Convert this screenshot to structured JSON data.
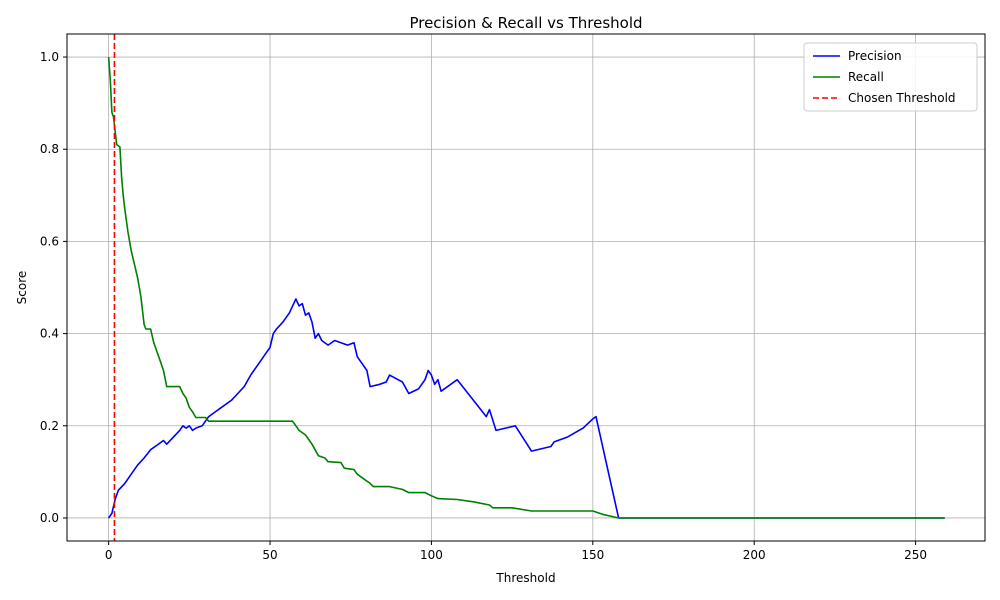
{
  "chart_data": {
    "type": "line",
    "title": "Precision & Recall vs Threshold",
    "xlabel": "Threshold",
    "ylabel": "Score",
    "xlim": [
      -12.9,
      271.5
    ],
    "ylim": [
      -0.05,
      1.05
    ],
    "xticks": [
      0,
      50,
      100,
      150,
      200,
      250
    ],
    "yticks": [
      0.0,
      0.2,
      0.4,
      0.6,
      0.8,
      1.0
    ],
    "grid": true,
    "legend_position": "top-right",
    "series": [
      {
        "name": "Precision",
        "color": "#0000ff",
        "style": "solid",
        "points": [
          [
            0,
            0.0
          ],
          [
            1,
            0.01
          ],
          [
            2,
            0.04
          ],
          [
            3,
            0.06
          ],
          [
            5,
            0.075
          ],
          [
            7,
            0.095
          ],
          [
            9,
            0.115
          ],
          [
            11,
            0.13
          ],
          [
            13,
            0.148
          ],
          [
            15,
            0.158
          ],
          [
            17,
            0.168
          ],
          [
            18,
            0.16
          ],
          [
            20,
            0.175
          ],
          [
            22,
            0.19
          ],
          [
            23,
            0.2
          ],
          [
            24,
            0.195
          ],
          [
            25,
            0.2
          ],
          [
            26,
            0.19
          ],
          [
            27,
            0.195
          ],
          [
            29,
            0.2
          ],
          [
            31,
            0.22
          ],
          [
            33,
            0.23
          ],
          [
            35,
            0.24
          ],
          [
            38,
            0.255
          ],
          [
            40,
            0.27
          ],
          [
            42,
            0.285
          ],
          [
            44,
            0.31
          ],
          [
            46,
            0.33
          ],
          [
            48,
            0.35
          ],
          [
            50,
            0.37
          ],
          [
            51,
            0.4
          ],
          [
            52,
            0.41
          ],
          [
            54,
            0.425
          ],
          [
            56,
            0.445
          ],
          [
            57,
            0.46
          ],
          [
            58,
            0.475
          ],
          [
            59,
            0.46
          ],
          [
            60,
            0.465
          ],
          [
            61,
            0.44
          ],
          [
            62,
            0.445
          ],
          [
            63,
            0.425
          ],
          [
            64,
            0.39
          ],
          [
            65,
            0.4
          ],
          [
            66,
            0.385
          ],
          [
            68,
            0.375
          ],
          [
            70,
            0.385
          ],
          [
            72,
            0.38
          ],
          [
            74,
            0.375
          ],
          [
            76,
            0.38
          ],
          [
            77,
            0.35
          ],
          [
            78,
            0.34
          ],
          [
            80,
            0.32
          ],
          [
            81,
            0.285
          ],
          [
            84,
            0.29
          ],
          [
            86,
            0.295
          ],
          [
            87,
            0.31
          ],
          [
            91,
            0.295
          ],
          [
            93,
            0.27
          ],
          [
            96,
            0.28
          ],
          [
            98,
            0.3
          ],
          [
            99,
            0.32
          ],
          [
            100,
            0.31
          ],
          [
            101,
            0.29
          ],
          [
            102,
            0.3
          ],
          [
            103,
            0.275
          ],
          [
            108,
            0.3
          ],
          [
            117,
            0.22
          ],
          [
            118,
            0.235
          ],
          [
            120,
            0.19
          ],
          [
            126,
            0.2
          ],
          [
            131,
            0.145
          ],
          [
            137,
            0.155
          ],
          [
            138,
            0.165
          ],
          [
            142,
            0.175
          ],
          [
            147,
            0.195
          ],
          [
            150,
            0.215
          ],
          [
            151,
            0.22
          ],
          [
            154,
            0.125
          ],
          [
            158,
            0.0
          ],
          [
            259,
            0.0
          ]
        ]
      },
      {
        "name": "Recall",
        "color": "#008000",
        "style": "solid",
        "points": [
          [
            0,
            1.0
          ],
          [
            0.5,
            0.95
          ],
          [
            1,
            0.88
          ],
          [
            1.5,
            0.87
          ],
          [
            2,
            0.84
          ],
          [
            2.5,
            0.81
          ],
          [
            3.5,
            0.805
          ],
          [
            4,
            0.74
          ],
          [
            4.5,
            0.7
          ],
          [
            5,
            0.67
          ],
          [
            6,
            0.62
          ],
          [
            7,
            0.58
          ],
          [
            8,
            0.55
          ],
          [
            9,
            0.52
          ],
          [
            10,
            0.48
          ],
          [
            11,
            0.42
          ],
          [
            11.5,
            0.41
          ],
          [
            13,
            0.41
          ],
          [
            14,
            0.38
          ],
          [
            15,
            0.36
          ],
          [
            16,
            0.34
          ],
          [
            17,
            0.32
          ],
          [
            18,
            0.285
          ],
          [
            22,
            0.285
          ],
          [
            23,
            0.27
          ],
          [
            24,
            0.26
          ],
          [
            25,
            0.24
          ],
          [
            26,
            0.23
          ],
          [
            27,
            0.218
          ],
          [
            30,
            0.218
          ],
          [
            31,
            0.21
          ],
          [
            57,
            0.21
          ],
          [
            58,
            0.2
          ],
          [
            59,
            0.19
          ],
          [
            61,
            0.18
          ],
          [
            62,
            0.17
          ],
          [
            63,
            0.16
          ],
          [
            65,
            0.135
          ],
          [
            67,
            0.13
          ],
          [
            68,
            0.122
          ],
          [
            72,
            0.12
          ],
          [
            73,
            0.108
          ],
          [
            76,
            0.105
          ],
          [
            77,
            0.095
          ],
          [
            79,
            0.085
          ],
          [
            81,
            0.075
          ],
          [
            82,
            0.068
          ],
          [
            87,
            0.068
          ],
          [
            91,
            0.062
          ],
          [
            93,
            0.055
          ],
          [
            98,
            0.055
          ],
          [
            100,
            0.048
          ],
          [
            102,
            0.042
          ],
          [
            108,
            0.04
          ],
          [
            113,
            0.035
          ],
          [
            118,
            0.028
          ],
          [
            119,
            0.022
          ],
          [
            125,
            0.022
          ],
          [
            131,
            0.015
          ],
          [
            150,
            0.015
          ],
          [
            153,
            0.008
          ],
          [
            158,
            0.0
          ],
          [
            259,
            0.0
          ]
        ]
      },
      {
        "name": "Chosen Threshold",
        "color": "#ff0000",
        "style": "dashed",
        "vline_x": 1.8
      }
    ]
  }
}
